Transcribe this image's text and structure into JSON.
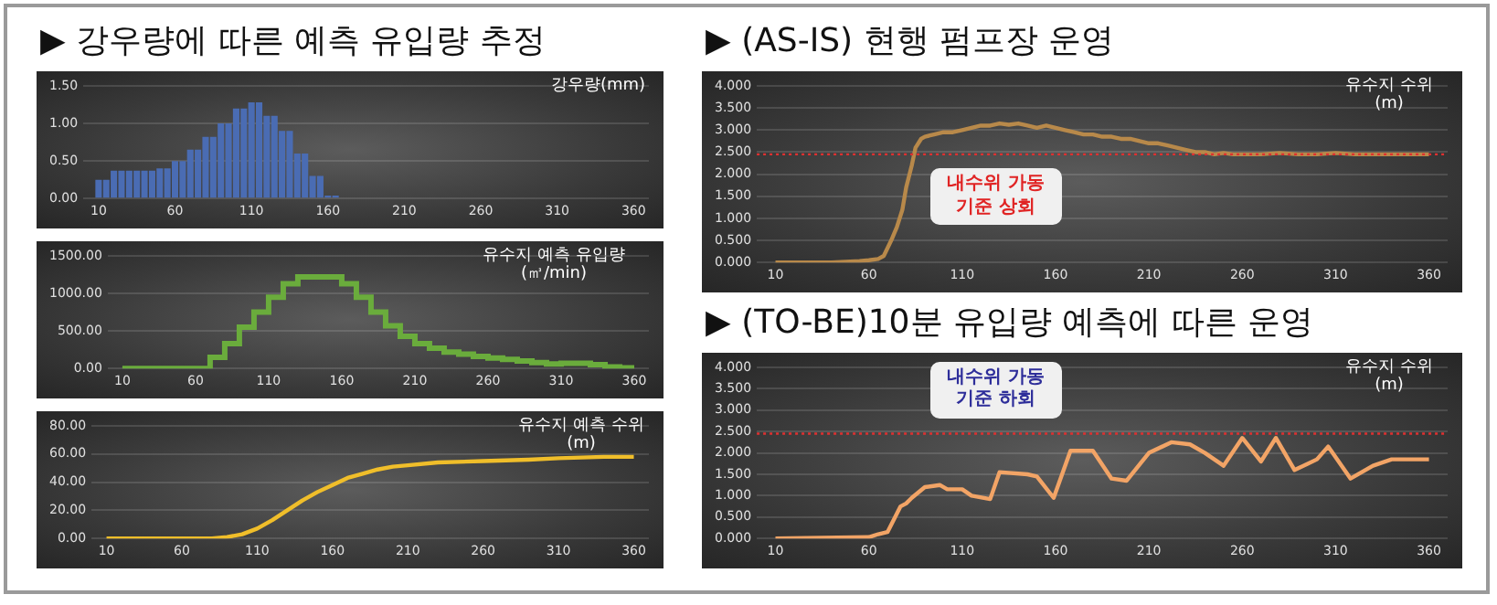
{
  "chart_data": [
    {
      "type": "bar",
      "title": "▶ 강우량에 따른 예측 유입량 추정",
      "ylabel": "강우량(mm)",
      "color": "#4a6cb3",
      "x": [
        10,
        15,
        20,
        25,
        30,
        35,
        40,
        45,
        50,
        55,
        60,
        65,
        70,
        75,
        80,
        85,
        90,
        95,
        100,
        105,
        110,
        115,
        120,
        125,
        130,
        135,
        140,
        145,
        150,
        155,
        160,
        165
      ],
      "values": [
        0.25,
        0.25,
        0.37,
        0.37,
        0.37,
        0.37,
        0.37,
        0.37,
        0.4,
        0.4,
        0.5,
        0.5,
        0.65,
        0.65,
        0.82,
        0.82,
        1.0,
        1.0,
        1.2,
        1.2,
        1.28,
        1.28,
        1.1,
        1.1,
        0.9,
        0.9,
        0.6,
        0.6,
        0.3,
        0.3,
        0.04,
        0.04
      ],
      "xlim": [
        0,
        370
      ],
      "xticks": [
        10,
        60,
        110,
        160,
        210,
        260,
        310,
        360
      ],
      "ylim": [
        0,
        1.5
      ],
      "yticks": [
        {
          "value": 0,
          "label": "0.00"
        },
        {
          "value": 0.5,
          "label": "0.50"
        },
        {
          "value": 1,
          "label": "1.00"
        },
        {
          "value": 1.5,
          "label": "1.50"
        }
      ],
      "grid": "y"
    },
    {
      "type": "step",
      "ylabel": "유수지 예측 유입량(㎥/min)",
      "color": "#6aac3c",
      "x": [
        10,
        20,
        30,
        40,
        50,
        60,
        70,
        80,
        90,
        100,
        110,
        120,
        130,
        140,
        150,
        160,
        170,
        180,
        190,
        200,
        210,
        220,
        230,
        240,
        250,
        260,
        270,
        280,
        290,
        300,
        310,
        320,
        330,
        340,
        350,
        360
      ],
      "values": [
        0,
        0,
        0,
        0,
        0,
        0,
        150,
        330,
        550,
        750,
        950,
        1130,
        1220,
        1220,
        1220,
        1130,
        950,
        750,
        570,
        430,
        330,
        270,
        220,
        190,
        160,
        140,
        120,
        100,
        80,
        60,
        70,
        70,
        50,
        20,
        10,
        10
      ],
      "xlim": [
        0,
        370
      ],
      "xticks": [
        10,
        60,
        110,
        160,
        210,
        260,
        310,
        360
      ],
      "ylim": [
        0,
        1500
      ],
      "yticks": [
        {
          "value": 0,
          "label": "0.00"
        },
        {
          "value": 500,
          "label": "500.00"
        },
        {
          "value": 1000,
          "label": "1000.00"
        },
        {
          "value": 1500,
          "label": "1500.00"
        }
      ],
      "grid": "y"
    },
    {
      "type": "line",
      "ylabel": "유수지 예측 수위 (m)",
      "color": "#f0be2a",
      "x": [
        10,
        50,
        80,
        90,
        100,
        110,
        120,
        130,
        140,
        150,
        160,
        170,
        180,
        190,
        200,
        210,
        230,
        260,
        290,
        310,
        340,
        360
      ],
      "values": [
        0,
        0,
        0,
        1,
        3,
        7,
        13,
        20,
        27,
        33,
        38,
        43,
        46,
        49,
        51,
        52,
        54,
        55,
        56,
        57,
        58,
        58
      ],
      "xlim": [
        0,
        370
      ],
      "xticks": [
        10,
        60,
        110,
        160,
        210,
        260,
        310,
        360
      ],
      "ylim": [
        0,
        80
      ],
      "yticks": [
        {
          "value": 0,
          "label": "0.00"
        },
        {
          "value": 20,
          "label": "20.00"
        },
        {
          "value": 40,
          "label": "40.00"
        },
        {
          "value": 60,
          "label": "60.00"
        },
        {
          "value": 80,
          "label": "80.00"
        }
      ],
      "grid": "y"
    },
    {
      "type": "line",
      "title": "▶ (AS-IS) 현행 펌프장 운영",
      "ylabel": "유수지 수위 (m)",
      "color": "#b8894a",
      "x": [
        10,
        20,
        30,
        40,
        50,
        55,
        60,
        65,
        68,
        72,
        75,
        78,
        80,
        83,
        85,
        88,
        90,
        95,
        100,
        105,
        110,
        115,
        120,
        125,
        130,
        135,
        140,
        145,
        150,
        155,
        160,
        165,
        170,
        175,
        180,
        185,
        190,
        195,
        200,
        205,
        210,
        215,
        220,
        225,
        230,
        235,
        240,
        245,
        250,
        255,
        260,
        270,
        280,
        290,
        300,
        310,
        320,
        330,
        340,
        350,
        360
      ],
      "values": [
        0,
        0,
        0,
        0,
        0.02,
        0.03,
        0.05,
        0.08,
        0.15,
        0.5,
        0.8,
        1.2,
        1.7,
        2.2,
        2.6,
        2.8,
        2.85,
        2.9,
        2.95,
        2.95,
        3.0,
        3.05,
        3.1,
        3.1,
        3.15,
        3.12,
        3.15,
        3.1,
        3.05,
        3.1,
        3.05,
        3.0,
        2.95,
        2.9,
        2.9,
        2.85,
        2.85,
        2.8,
        2.8,
        2.75,
        2.7,
        2.7,
        2.65,
        2.6,
        2.55,
        2.5,
        2.5,
        2.45,
        2.48,
        2.45,
        2.45,
        2.45,
        2.48,
        2.45,
        2.45,
        2.48,
        2.45,
        2.45,
        2.45,
        2.45,
        2.45
      ],
      "xlim": [
        0,
        370
      ],
      "xticks": [
        10,
        60,
        110,
        160,
        210,
        260,
        310,
        360
      ],
      "ylim": [
        0,
        4
      ],
      "yticks": [
        {
          "value": 0,
          "label": "0.000"
        },
        {
          "value": 0.5,
          "label": "0.500"
        },
        {
          "value": 1,
          "label": "1.000"
        },
        {
          "value": 1.5,
          "label": "1.500"
        },
        {
          "value": 2,
          "label": "2.000"
        },
        {
          "value": 2.5,
          "label": "2.500"
        },
        {
          "value": 3,
          "label": "3.000"
        },
        {
          "value": 3.5,
          "label": "3.500"
        },
        {
          "value": 4,
          "label": "4.000"
        }
      ],
      "grid": "y",
      "ref_lines": [
        {
          "axis": "y",
          "value": 2.45,
          "color": "#e03030",
          "line_style": "dotted"
        }
      ],
      "annotations": [
        "내수위 가동 기준 상회"
      ]
    },
    {
      "type": "line",
      "title": "▶ (TO-BE)10분 유입량 예측에 따른 운영",
      "ylabel": "유수지 수위 (m)",
      "color": "#f2a466",
      "x": [
        10,
        60,
        65,
        70,
        77,
        80,
        83,
        90,
        98,
        102,
        110,
        115,
        125,
        130,
        145,
        150,
        159,
        168,
        180,
        190,
        198,
        210,
        222,
        232,
        240,
        250,
        260,
        270,
        278,
        288,
        300,
        306,
        318,
        330,
        340,
        360
      ],
      "values": [
        0,
        0.03,
        0.1,
        0.15,
        0.75,
        0.82,
        0.95,
        1.2,
        1.25,
        1.15,
        1.15,
        1.0,
        0.92,
        1.55,
        1.5,
        1.45,
        0.95,
        2.05,
        2.05,
        1.4,
        1.35,
        2.0,
        2.25,
        2.2,
        2.0,
        1.7,
        2.35,
        1.8,
        2.35,
        1.6,
        1.85,
        2.15,
        1.4,
        1.7,
        1.85,
        1.85
      ],
      "xlim": [
        0,
        370
      ],
      "xticks": [
        10,
        60,
        110,
        160,
        210,
        260,
        310,
        360
      ],
      "ylim": [
        0,
        4
      ],
      "yticks": [
        {
          "value": 0,
          "label": "0.000"
        },
        {
          "value": 0.5,
          "label": "0.500"
        },
        {
          "value": 1,
          "label": "1.000"
        },
        {
          "value": 1.5,
          "label": "1.500"
        },
        {
          "value": 2,
          "label": "2.000"
        },
        {
          "value": 2.5,
          "label": "2.500"
        },
        {
          "value": 3,
          "label": "3.000"
        },
        {
          "value": 3.5,
          "label": "3.500"
        },
        {
          "value": 4,
          "label": "4.000"
        }
      ],
      "grid": "y",
      "ref_lines": [
        {
          "axis": "y",
          "value": 2.45,
          "color": "#e03030",
          "line_style": "dotted"
        }
      ],
      "annotations": [
        "내수위 가동 기준 하회"
      ]
    }
  ]
}
